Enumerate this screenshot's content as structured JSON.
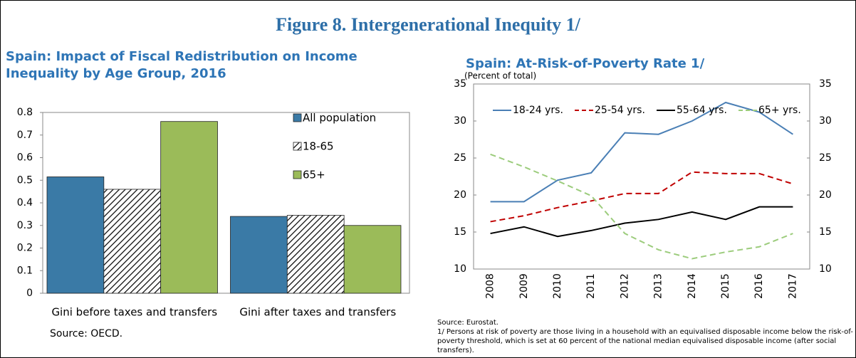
{
  "title": "Figure 8. Intergenerational Inequity 1/",
  "chart_data": [
    {
      "type": "bar",
      "title": "Spain: Impact of Fiscal Redistribution on Income Inequality by Age Group, 2016",
      "categories": [
        "Gini before taxes and transfers",
        "Gini after taxes and transfers"
      ],
      "series": [
        {
          "name": "All population",
          "color": "#3a7aa6",
          "values": [
            0.515,
            0.34
          ]
        },
        {
          "name": "18-65",
          "color": "#ffffff",
          "pattern": "hatch",
          "values": [
            0.46,
            0.345
          ]
        },
        {
          "name": "65+",
          "color": "#9bbb59",
          "values": [
            0.76,
            0.3
          ]
        }
      ],
      "ylim": [
        0,
        0.8
      ],
      "yticks": [
        0,
        0.1,
        0.2,
        0.3,
        0.4,
        0.5,
        0.6,
        0.7,
        0.8
      ],
      "legend": "upper right",
      "source": "Source: OECD."
    },
    {
      "type": "line",
      "title": "Spain: At-Risk-of-Poverty Rate 1/",
      "subtitle": "(Percent of total)",
      "x": [
        2008,
        2009,
        2010,
        2011,
        2012,
        2013,
        2014,
        2015,
        2016,
        2017
      ],
      "series": [
        {
          "name": "18-24 yrs.",
          "color": "#4a7fb5",
          "line_style": "solid",
          "values": [
            19.1,
            19.1,
            22.0,
            23.0,
            28.4,
            28.2,
            30.0,
            32.5,
            31.2,
            28.2
          ]
        },
        {
          "name": "25-54 yrs.",
          "color": "#c00000",
          "line_style": "dashed",
          "values": [
            16.4,
            17.2,
            18.3,
            19.2,
            20.2,
            20.2,
            23.1,
            22.9,
            22.9,
            21.5
          ]
        },
        {
          "name": "55-64 yrs.",
          "color": "#000000",
          "line_style": "solid",
          "values": [
            14.8,
            15.7,
            14.4,
            15.2,
            16.2,
            16.7,
            17.7,
            16.7,
            18.4,
            18.4
          ]
        },
        {
          "name": "65+ yrs.",
          "color": "#9ccc7c",
          "line_style": "dashed",
          "values": [
            25.5,
            23.8,
            21.9,
            19.9,
            14.8,
            12.6,
            11.4,
            12.3,
            13.0,
            14.8
          ]
        }
      ],
      "ylim": [
        10,
        35
      ],
      "yticks": [
        10,
        15,
        20,
        25,
        30,
        35
      ],
      "y2lim": [
        10,
        35
      ],
      "y2ticks": [
        10,
        15,
        20,
        25,
        30,
        35
      ],
      "legend": "top",
      "source": "Source: Eurostat.",
      "note": "1/ Persons at risk of poverty are those living in a household with an equivalised disposable income below the risk-of-poverty threshold, which is set at 60 percent of the national median equivalised disposable income (after social transfers)."
    }
  ]
}
